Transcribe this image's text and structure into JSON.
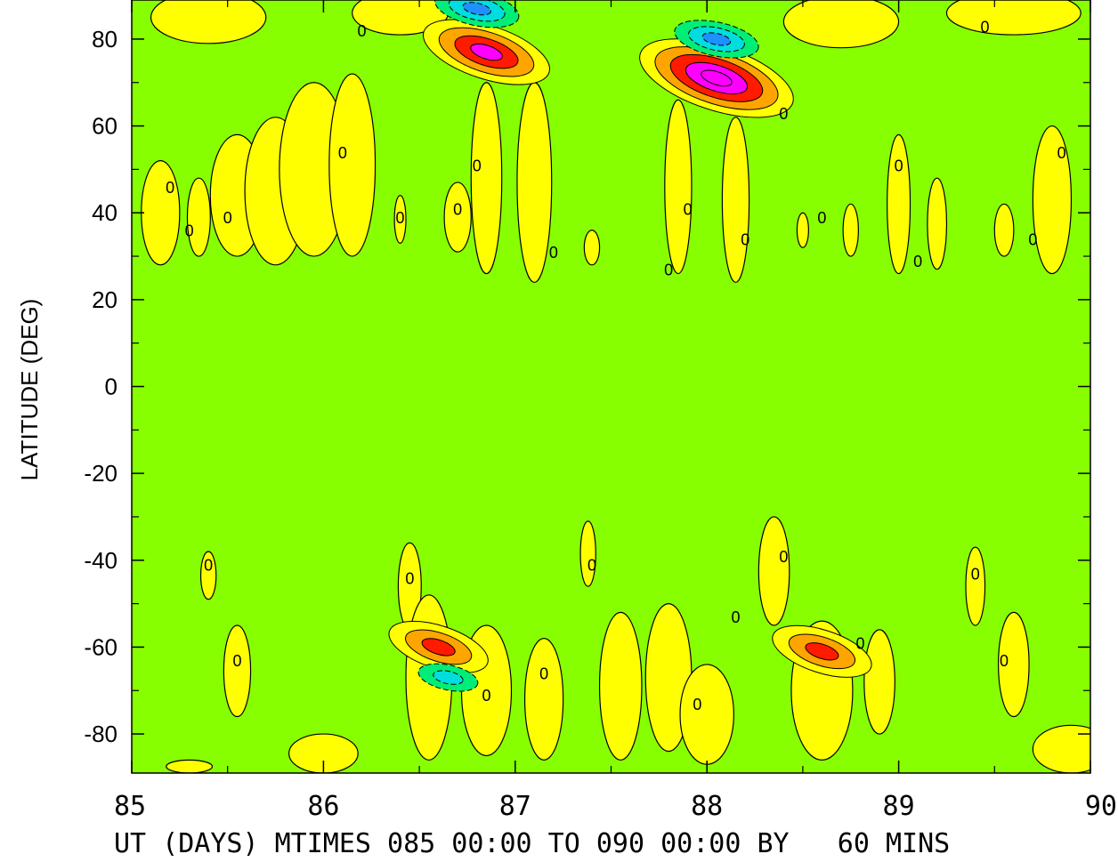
{
  "chart_data": {
    "type": "heatmap",
    "title": "",
    "ylabel": "LATITUDE (DEG)",
    "xlabel": "UT (DAYS) MTIMES 085 00:00 TO 090 00:00 BY   60 MINS",
    "xlim": [
      85,
      90
    ],
    "ylim": [
      -89,
      89
    ],
    "x_ticks": [
      "85",
      "86",
      "87",
      "88",
      "89",
      "90"
    ],
    "y_ticks": [
      "80",
      "60",
      "40",
      "20",
      "0",
      "-20",
      "-40",
      "-60",
      "-80"
    ],
    "grid": false,
    "legend": "none",
    "contour_label": "0",
    "background_value": 0,
    "colors": {
      "background": "#88ff00",
      "low_positive": "#ffff00",
      "medium_positive": "#ffa500",
      "high_positive": "#ff1a00",
      "peak_positive": "#ff00ff",
      "low_negative": "#00ee77",
      "mid_negative": "#00dddd",
      "strong_negative": "#1e90ff"
    },
    "features": [
      {
        "sign": "positive",
        "level": 3,
        "x": 86.85,
        "y": 77
      },
      {
        "sign": "positive",
        "level": 4,
        "x": 88.05,
        "y": 71
      },
      {
        "sign": "negative",
        "level": 2,
        "x": 86.8,
        "y": 87
      },
      {
        "sign": "negative",
        "level": 2,
        "x": 88.05,
        "y": 80
      },
      {
        "sign": "positive",
        "level": 2,
        "x": 86.6,
        "y": -60
      },
      {
        "sign": "negative",
        "level": 1,
        "x": 86.65,
        "y": -67
      },
      {
        "sign": "positive",
        "level": 2,
        "x": 88.6,
        "y": -61
      }
    ],
    "zero_contour_labels": [
      {
        "x": 85.2,
        "y": 46
      },
      {
        "x": 85.3,
        "y": 36
      },
      {
        "x": 85.5,
        "y": 39
      },
      {
        "x": 86.1,
        "y": 54
      },
      {
        "x": 86.2,
        "y": 82
      },
      {
        "x": 86.4,
        "y": 39
      },
      {
        "x": 86.7,
        "y": 41
      },
      {
        "x": 86.8,
        "y": 51
      },
      {
        "x": 87.2,
        "y": 31
      },
      {
        "x": 87.8,
        "y": 27
      },
      {
        "x": 87.9,
        "y": 41
      },
      {
        "x": 88.2,
        "y": 34
      },
      {
        "x": 88.4,
        "y": 63
      },
      {
        "x": 88.6,
        "y": 39
      },
      {
        "x": 89.0,
        "y": 51
      },
      {
        "x": 89.1,
        "y": 29
      },
      {
        "x": 89.45,
        "y": 83
      },
      {
        "x": 89.7,
        "y": 34
      },
      {
        "x": 89.85,
        "y": 54
      },
      {
        "x": 85.4,
        "y": -41
      },
      {
        "x": 85.55,
        "y": -63
      },
      {
        "x": 86.45,
        "y": -44
      },
      {
        "x": 86.85,
        "y": -71
      },
      {
        "x": 87.15,
        "y": -66
      },
      {
        "x": 87.4,
        "y": -41
      },
      {
        "x": 87.95,
        "y": -73
      },
      {
        "x": 88.15,
        "y": -53
      },
      {
        "x": 88.4,
        "y": -39
      },
      {
        "x": 88.8,
        "y": -59
      },
      {
        "x": 89.4,
        "y": -43
      },
      {
        "x": 89.55,
        "y": -63
      }
    ]
  }
}
